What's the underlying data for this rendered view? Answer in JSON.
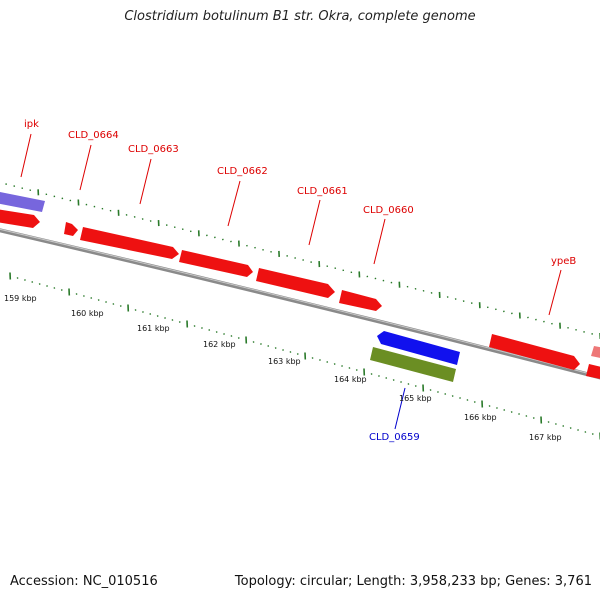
{
  "title": "Clostridium botulinum B1 str. Okra, complete genome",
  "accession": "Accession: NC_010516",
  "summary": "Topology: circular; Length: 3,958,233 bp; Genes: 3,761",
  "colors": {
    "forward_gene": "#ee1111",
    "forward_label": "#dd0000",
    "reverse_gene": "#1111ee",
    "reverse_label": "#0000cc",
    "orf_purple": "#7766dd",
    "feature_green": "#6b8e23",
    "ticks": "#2a7a2a",
    "backbone": "#888888"
  },
  "genes_forward": [
    {
      "label": "ipk"
    },
    {
      "label": "CLD_0664"
    },
    {
      "label": "CLD_0663"
    },
    {
      "label": "CLD_0662"
    },
    {
      "label": "CLD_0661"
    },
    {
      "label": "CLD_0660"
    },
    {
      "label": "ypeB"
    }
  ],
  "genes_reverse": [
    {
      "label": "CLD_0659"
    }
  ],
  "scale_labels": [
    "159 kbp",
    "160 kbp",
    "161 kbp",
    "162 kbp",
    "163 kbp",
    "164 kbp",
    "165 kbp",
    "166 kbp",
    "167 kbp"
  ]
}
